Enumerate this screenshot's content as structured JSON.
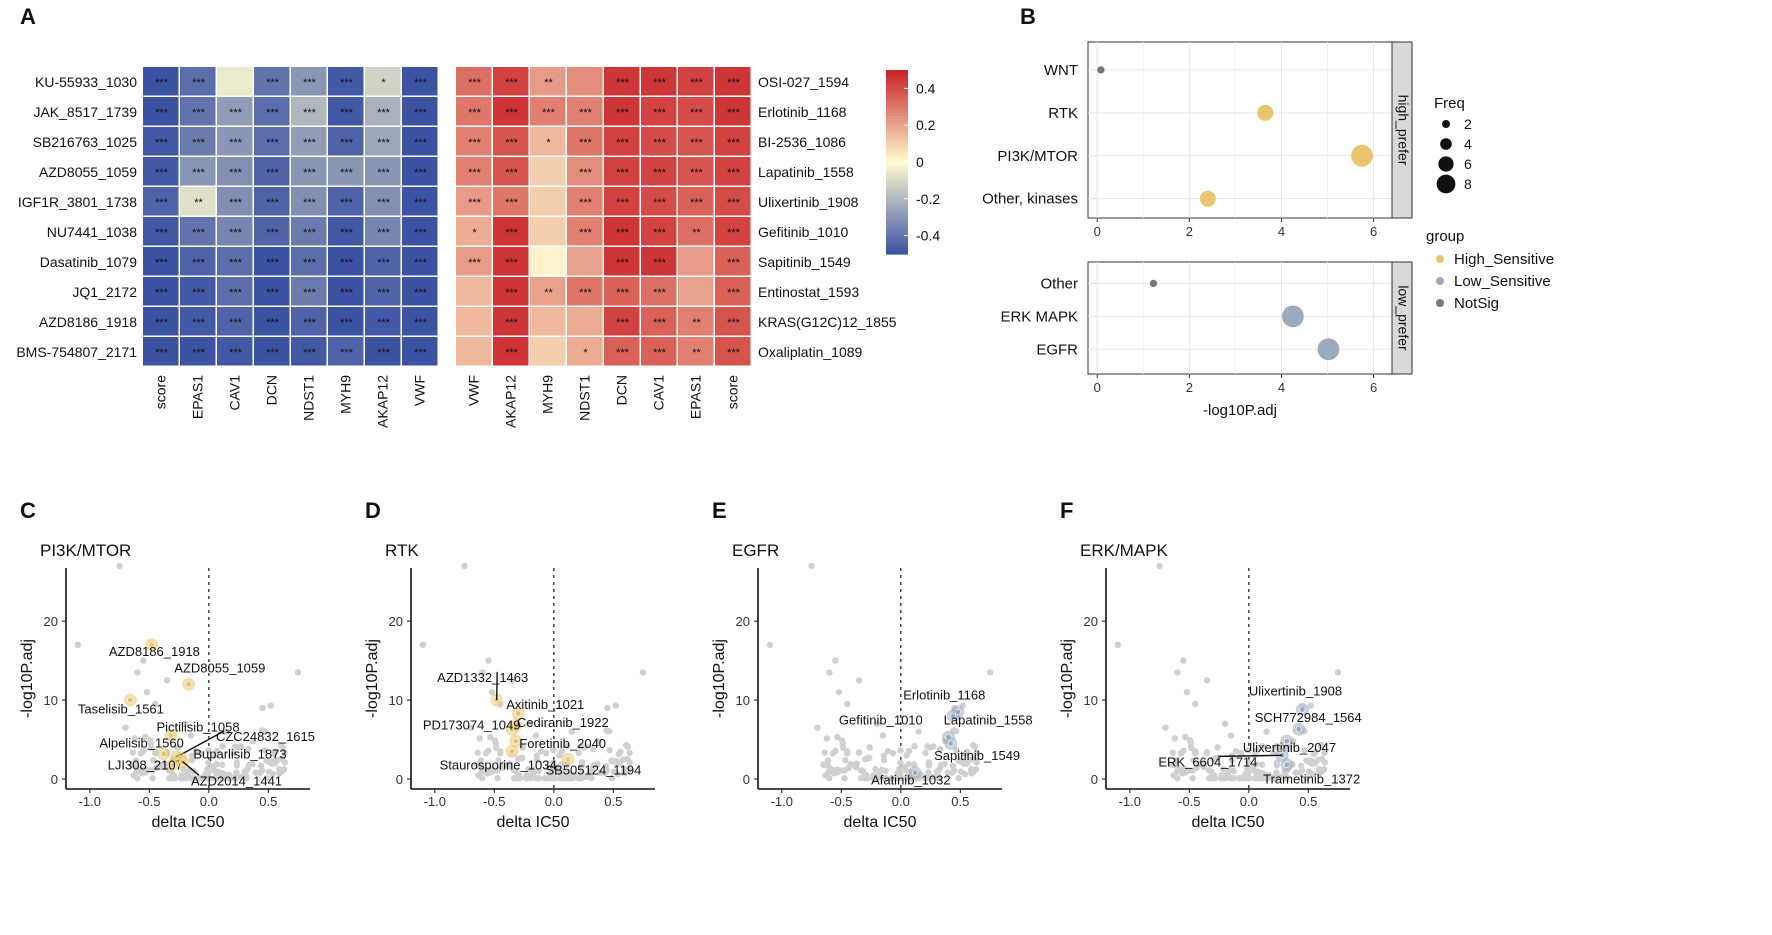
{
  "panel_labels": [
    "A",
    "B",
    "C",
    "D",
    "E",
    "F"
  ],
  "colors": {
    "heat_low": "#3c52a3",
    "heat_mid": "#fffbd0",
    "heat_high": "#c91f25",
    "high_sensitive": "#e8c56e",
    "low_sensitive": "#9aabbd",
    "notsig": "#777777",
    "grey_point": "#d0d0d0"
  },
  "chart_data": [
    {
      "id": "A_left",
      "type": "heatmap",
      "rows": [
        "KU-55933_1030",
        "JAK_8517_1739",
        "SB216763_1025",
        "AZD8055_1059",
        "IGF1R_3801_1738",
        "NU7441_1038",
        "Dasatinib_1079",
        "JQ1_2172",
        "AZD8186_1918",
        "BMS-754807_2171"
      ],
      "cols": [
        "score",
        "EPAS1",
        "CAV1",
        "DCN",
        "NDST1",
        "MYH9",
        "AKAP12",
        "VWF"
      ],
      "values": [
        [
          -0.5,
          -0.42,
          -0.05,
          -0.4,
          -0.3,
          -0.48,
          -0.12,
          -0.5
        ],
        [
          -0.5,
          -0.4,
          -0.28,
          -0.42,
          -0.2,
          -0.48,
          -0.22,
          -0.5
        ],
        [
          -0.48,
          -0.38,
          -0.3,
          -0.42,
          -0.28,
          -0.45,
          -0.25,
          -0.5
        ],
        [
          -0.48,
          -0.3,
          -0.32,
          -0.45,
          -0.3,
          -0.3,
          -0.3,
          -0.5
        ],
        [
          -0.45,
          -0.08,
          -0.32,
          -0.45,
          -0.32,
          -0.45,
          -0.32,
          -0.5
        ],
        [
          -0.48,
          -0.4,
          -0.35,
          -0.45,
          -0.38,
          -0.48,
          -0.35,
          -0.5
        ],
        [
          -0.5,
          -0.45,
          -0.42,
          -0.5,
          -0.42,
          -0.5,
          -0.45,
          -0.5
        ],
        [
          -0.5,
          -0.48,
          -0.42,
          -0.5,
          -0.38,
          -0.5,
          -0.45,
          -0.5
        ],
        [
          -0.5,
          -0.48,
          -0.45,
          -0.5,
          -0.45,
          -0.5,
          -0.48,
          -0.5
        ],
        [
          -0.5,
          -0.5,
          -0.48,
          -0.5,
          -0.48,
          -0.45,
          -0.5,
          -0.5
        ]
      ],
      "stars": [
        [
          "***",
          "***",
          "",
          "***",
          "***",
          "***",
          "*",
          "***"
        ],
        [
          "***",
          "***",
          "***",
          "***",
          "***",
          "***",
          "***",
          "***"
        ],
        [
          "***",
          "***",
          "***",
          "***",
          "***",
          "***",
          "***",
          "***"
        ],
        [
          "***",
          "***",
          "***",
          "***",
          "***",
          "***",
          "***",
          "***"
        ],
        [
          "***",
          "**",
          "***",
          "***",
          "***",
          "***",
          "***",
          "***"
        ],
        [
          "***",
          "***",
          "***",
          "***",
          "***",
          "***",
          "***",
          "***"
        ],
        [
          "***",
          "***",
          "***",
          "***",
          "***",
          "***",
          "***",
          "***"
        ],
        [
          "***",
          "***",
          "***",
          "***",
          "***",
          "***",
          "***",
          "***"
        ],
        [
          "***",
          "***",
          "***",
          "***",
          "***",
          "***",
          "***",
          "***"
        ],
        [
          "***",
          "***",
          "***",
          "***",
          "***",
          "***",
          "***",
          "***"
        ]
      ]
    },
    {
      "id": "A_right",
      "type": "heatmap",
      "rows": [
        "OSI-027_1594",
        "Erlotinib_1168",
        "BI-2536_1086",
        "Lapatinib_1558",
        "Ulixertinib_1908",
        "Gefitinib_1010",
        "Sapitinib_1549",
        "Entinostat_1593",
        "KRAS(G12C)12_1855",
        "Oxaliplatin_1089"
      ],
      "cols": [
        "VWF",
        "AKAP12",
        "MYH9",
        "NDST1",
        "DCN",
        "CAV1",
        "EPAS1",
        "score"
      ],
      "values": [
        [
          0.32,
          0.42,
          0.22,
          0.25,
          0.45,
          0.45,
          0.42,
          0.45
        ],
        [
          0.3,
          0.45,
          0.28,
          0.28,
          0.45,
          0.42,
          0.4,
          0.45
        ],
        [
          0.28,
          0.38,
          0.15,
          0.3,
          0.42,
          0.4,
          0.38,
          0.42
        ],
        [
          0.28,
          0.38,
          0.1,
          0.25,
          0.42,
          0.42,
          0.38,
          0.42
        ],
        [
          0.22,
          0.3,
          0.1,
          0.28,
          0.42,
          0.4,
          0.35,
          0.4
        ],
        [
          0.18,
          0.45,
          0.1,
          0.28,
          0.45,
          0.42,
          0.32,
          0.42
        ],
        [
          0.22,
          0.45,
          0.02,
          0.2,
          0.45,
          0.45,
          0.22,
          0.35
        ],
        [
          0.15,
          0.45,
          0.2,
          0.3,
          0.35,
          0.32,
          0.2,
          0.35
        ],
        [
          0.15,
          0.45,
          0.15,
          0.18,
          0.42,
          0.35,
          0.28,
          0.38
        ],
        [
          0.15,
          0.45,
          0.1,
          0.18,
          0.35,
          0.35,
          0.28,
          0.38
        ]
      ],
      "stars": [
        [
          "***",
          "***",
          "**",
          "",
          "***",
          "***",
          "***",
          "***"
        ],
        [
          "***",
          "***",
          "***",
          "***",
          "***",
          "***",
          "***",
          "***"
        ],
        [
          "***",
          "***",
          "*",
          "***",
          "***",
          "***",
          "***",
          "***"
        ],
        [
          "***",
          "***",
          "",
          "***",
          "***",
          "***",
          "***",
          "***"
        ],
        [
          "***",
          "***",
          "",
          "***",
          "***",
          "***",
          "***",
          "***"
        ],
        [
          "*",
          "***",
          "",
          "***",
          "***",
          "***",
          "**",
          "***"
        ],
        [
          "***",
          "***",
          "",
          "",
          "***",
          "***",
          "",
          "***"
        ],
        [
          "",
          "***",
          "**",
          "***",
          "***",
          "***",
          "",
          "***"
        ],
        [
          "",
          "***",
          "",
          "",
          "***",
          "***",
          "**",
          "***"
        ],
        [
          "",
          "***",
          "",
          "*",
          "***",
          "***",
          "**",
          "***"
        ]
      ],
      "colorbar_ticks": [
        0.4,
        0.2,
        0,
        -0.2,
        -0.4
      ],
      "range": [
        -0.5,
        0.5
      ]
    },
    {
      "id": "B",
      "type": "scatter",
      "xlabel": "-log10P.adj",
      "xlim": [
        -0.2,
        6.4
      ],
      "xticks": [
        0,
        2,
        4,
        6
      ],
      "facets": [
        {
          "strip": "high_prefer",
          "categories": [
            "WNT",
            "RTK",
            "PI3K/MTOR",
            "Other, kinases"
          ],
          "points": [
            {
              "cat": "WNT",
              "x": 0.08,
              "freq": 1,
              "group": "NotSig"
            },
            {
              "cat": "RTK",
              "x": 3.65,
              "freq": 4,
              "group": "High_Sensitive"
            },
            {
              "cat": "PI3K/MTOR",
              "x": 5.75,
              "freq": 6,
              "group": "High_Sensitive"
            },
            {
              "cat": "Other, kinases",
              "x": 2.4,
              "freq": 4,
              "group": "High_Sensitive"
            }
          ]
        },
        {
          "strip": "low_prefer",
          "categories": [
            "Other",
            "ERK MAPK",
            "EGFR"
          ],
          "points": [
            {
              "cat": "Other",
              "x": 1.22,
              "freq": 1,
              "group": "NotSig"
            },
            {
              "cat": "ERK MAPK",
              "x": 4.25,
              "freq": 6,
              "group": "Low_Sensitive"
            },
            {
              "cat": "EGFR",
              "x": 5.02,
              "freq": 6,
              "group": "Low_Sensitive"
            }
          ]
        }
      ],
      "legend_freq_title": "Freq",
      "legend_freq": [
        2,
        4,
        6,
        8
      ],
      "legend_group_title": "group",
      "legend_groups": [
        "High_Sensitive",
        "Low_Sensitive",
        "NotSig"
      ]
    },
    {
      "id": "C",
      "type": "scatter",
      "title": "PI3K/MTOR",
      "xlabel": "delta IC50",
      "ylabel": "-log10P.adj",
      "xlim": [
        -1.2,
        0.85
      ],
      "ylim": [
        0,
        28
      ],
      "xticks": [
        -1.0,
        -0.5,
        0.0,
        0.5
      ],
      "yticks": [
        0,
        10,
        20
      ],
      "highlight_group": "High_Sensitive",
      "points": [
        {
          "x": -0.48,
          "y": 17,
          "label": "AZD8186_1918",
          "lx": -0.84,
          "ly": 15.6
        },
        {
          "x": -0.17,
          "y": 12,
          "label": "AZD8055_1059",
          "lx": -0.29,
          "ly": 13.5
        },
        {
          "x": -0.66,
          "y": 10,
          "label": "Taselisib_1561",
          "lx": -1.1,
          "ly": 8.3
        },
        {
          "x": -0.32,
          "y": 5.5,
          "label": "Pictilisib_1058",
          "lx": -0.44,
          "ly": 6.0
        },
        {
          "x": -0.27,
          "y": 2.8,
          "label": "CZC24832_1615",
          "lx": 0.06,
          "ly": 4.8,
          "line": true
        },
        {
          "x": -0.38,
          "y": 3.2,
          "label": "Alpelisib_1560",
          "lx": -0.92,
          "ly": 4.0
        },
        {
          "x": -0.24,
          "y": 2.6,
          "label": "Buparlisib_1873",
          "lx": -0.13,
          "ly": 2.6
        },
        {
          "x": -0.3,
          "y": 1.8,
          "label": "LJI308_2107",
          "lx": -0.85,
          "ly": 1.2
        },
        {
          "x": -0.22,
          "y": 2.2,
          "label": "AZD2014_1441",
          "lx": -0.15,
          "ly": -0.8,
          "line": true
        }
      ]
    },
    {
      "id": "D",
      "type": "scatter",
      "title": "RTK",
      "xlabel": "delta IC50",
      "ylabel": "-log10P.adj",
      "xlim": [
        -1.2,
        0.85
      ],
      "ylim": [
        0,
        28
      ],
      "xticks": [
        -1.0,
        -0.5,
        0.0,
        0.5
      ],
      "yticks": [
        0,
        10,
        20
      ],
      "highlight_group": "High_Sensitive",
      "points": [
        {
          "x": -0.48,
          "y": 10,
          "label": "AZD1332_1463",
          "lx": -0.98,
          "ly": 12.3,
          "line": true
        },
        {
          "x": -0.3,
          "y": 8.3,
          "label": "Axitinib_1021",
          "lx": -0.4,
          "ly": 8.9
        },
        {
          "x": -0.32,
          "y": 6.8,
          "label": "Cediranib_1922",
          "lx": -0.31,
          "ly": 6.6
        },
        {
          "x": -0.35,
          "y": 6.3,
          "label": "PD173074_1049",
          "lx": -1.1,
          "ly": 6.3
        },
        {
          "x": -0.32,
          "y": 4.8,
          "label": "Foretinib_2040",
          "lx": -0.29,
          "ly": 3.9
        },
        {
          "x": -0.35,
          "y": 3.5,
          "label": "Staurosporine_1034",
          "lx": -0.96,
          "ly": 1.2
        },
        {
          "x": 0.12,
          "y": 2.5,
          "label": "SB505124_1194",
          "lx": -0.07,
          "ly": 0.6
        }
      ]
    },
    {
      "id": "E",
      "type": "scatter",
      "title": "EGFR",
      "xlabel": "delta IC50",
      "ylabel": "-log10P.adj",
      "xlim": [
        -1.2,
        0.85
      ],
      "ylim": [
        0,
        28
      ],
      "xticks": [
        -1.0,
        -0.5,
        0.0,
        0.5
      ],
      "yticks": [
        0,
        10,
        20
      ],
      "highlight_group": "Low_Sensitive",
      "points": [
        {
          "x": 0.48,
          "y": 8.5,
          "label": "Erlotinib_1168",
          "lx": 0.02,
          "ly": 10.1
        },
        {
          "x": 0.44,
          "y": 8.0,
          "label": "Lapatinib_1558",
          "lx": 0.36,
          "ly": 6.9
        },
        {
          "x": 0.4,
          "y": 5.3,
          "label": "Gefitinib_1010",
          "lx": -0.52,
          "ly": 6.9
        },
        {
          "x": 0.42,
          "y": 4.5,
          "label": "Sapitinib_1549",
          "lx": 0.28,
          "ly": 2.4
        },
        {
          "x": 0.12,
          "y": 0.8,
          "label": "Afatinib_1032",
          "lx": -0.25,
          "ly": -0.7
        }
      ]
    },
    {
      "id": "F",
      "type": "scatter",
      "title": "ERK/MAPK",
      "xlabel": "delta IC50",
      "ylabel": "-log10P.adj",
      "xlim": [
        -1.2,
        0.85
      ],
      "ylim": [
        0,
        28
      ],
      "xticks": [
        -1.0,
        -0.5,
        0.0,
        0.5
      ],
      "yticks": [
        0,
        10,
        20
      ],
      "highlight_group": "Low_Sensitive",
      "points": [
        {
          "x": 0.45,
          "y": 8.8,
          "label": "Ulixertinib_1908",
          "lx": 0.0,
          "ly": 10.6
        },
        {
          "x": 0.42,
          "y": 6.3,
          "label": "SCH772984_1564",
          "lx": 0.05,
          "ly": 7.2
        },
        {
          "x": 0.32,
          "y": 4.8,
          "label": "Ulixertinib_2047",
          "lx": -0.05,
          "ly": 3.4
        },
        {
          "x": 0.28,
          "y": 3.0,
          "label": "ERK_6604_1714",
          "lx": -0.76,
          "ly": 1.6,
          "line": true
        },
        {
          "x": 0.32,
          "y": 1.8,
          "label": "Trametinib_1372",
          "lx": 0.12,
          "ly": -0.6
        }
      ]
    }
  ]
}
